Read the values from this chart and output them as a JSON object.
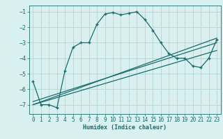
{
  "xlabel": "Humidex (Indice chaleur)",
  "background_color": "#d8f0f0",
  "line_color": "#1a6b6b",
  "grid_color": "#b8d8d8",
  "grid_red_color": "#e8b8b8",
  "xlim": [
    -0.5,
    23.5
  ],
  "ylim": [
    -7.6,
    -0.6
  ],
  "yticks": [
    -7,
    -6,
    -5,
    -4,
    -3,
    -2,
    -1
  ],
  "xticks": [
    0,
    1,
    2,
    3,
    4,
    5,
    6,
    7,
    8,
    9,
    10,
    11,
    12,
    13,
    14,
    15,
    16,
    17,
    18,
    19,
    20,
    21,
    22,
    23
  ],
  "series1_x": [
    0,
    1,
    2,
    3,
    4,
    5,
    6,
    7,
    8,
    9,
    10,
    11,
    12,
    13,
    14,
    15,
    16,
    17,
    18,
    19,
    20,
    21,
    22,
    23
  ],
  "series1_y": [
    -5.5,
    -7.0,
    -7.0,
    -7.2,
    -4.8,
    -3.3,
    -3.0,
    -3.0,
    -1.8,
    -1.15,
    -1.05,
    -1.2,
    -1.1,
    -1.0,
    -1.5,
    -2.2,
    -3.0,
    -3.7,
    -4.0,
    -4.0,
    -4.5,
    -4.6,
    -4.0,
    -2.8
  ],
  "series2_x": [
    0,
    23
  ],
  "series2_y": [
    -6.8,
    -3.0
  ],
  "series3_x": [
    0,
    23
  ],
  "series3_y": [
    -7.0,
    -2.7
  ],
  "series4_x": [
    0,
    23
  ],
  "series4_y": [
    -7.0,
    -3.5
  ]
}
